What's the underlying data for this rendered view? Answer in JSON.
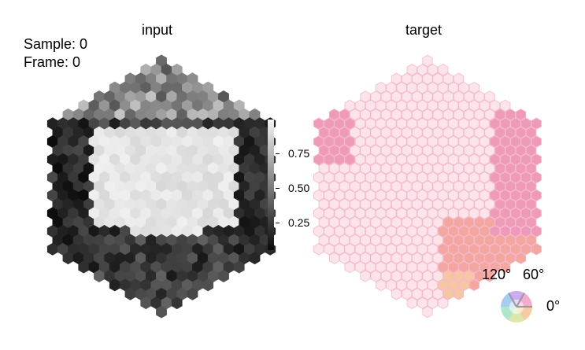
{
  "sample_label": "Sample: 0",
  "frame_label": "Frame: 0",
  "panels": {
    "input_title": "input",
    "target_title": "target"
  },
  "colorbar": {
    "ticks": [
      "0.75",
      "0.50",
      "0.25"
    ],
    "tick_values": [
      0.75,
      0.5,
      0.25
    ],
    "range": [
      0.05,
      0.95
    ],
    "colormap": "greys"
  },
  "angle_legend": {
    "labels": [
      "120°",
      "60°",
      "0°"
    ]
  },
  "colors": {
    "target_base": "#fce4ea",
    "target_edge": "#f3b8c8",
    "pink_region": "#ee9ab8",
    "orange_region": "#f4a6a0",
    "peach": "#f7c7a3"
  }
}
